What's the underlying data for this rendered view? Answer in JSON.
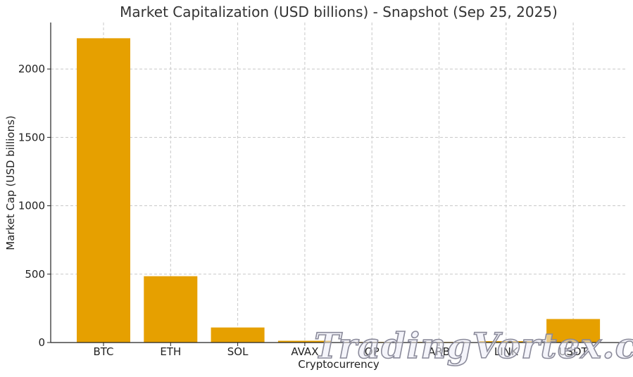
{
  "chart_data": {
    "type": "bar",
    "title": "Market Capitalization (USD billions) - Snapshot (Sep 25, 2025)",
    "xlabel": "Cryptocurrency",
    "ylabel": "Market Cap (USD billions)",
    "categories": [
      "BTC",
      "ETH",
      "SOL",
      "AVAX",
      "OP",
      "ARB",
      "LINK",
      "USDT"
    ],
    "values": [
      2225,
      485,
      110,
      13,
      1,
      2,
      10,
      172
    ],
    "ylim": [
      0,
      2340
    ],
    "yticks": [
      0,
      500,
      1000,
      1500,
      2000
    ],
    "grid": true,
    "legend": "none",
    "bar_color": "#e6a000"
  },
  "watermark": {
    "text": "TradingVortex.com"
  }
}
